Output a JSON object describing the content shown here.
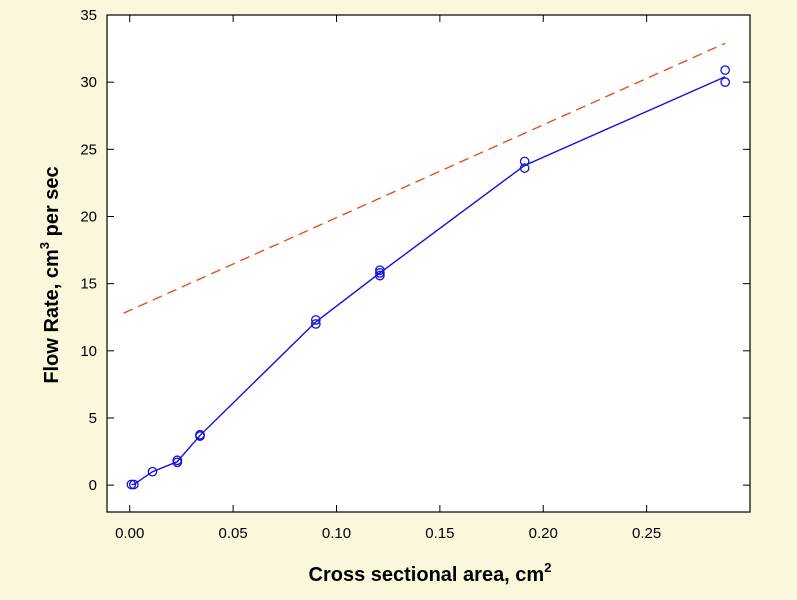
{
  "chart_data": {
    "type": "line",
    "title": "",
    "xlabel": "Cross sectional area, cm",
    "xlabel_sup": "2",
    "ylabel_main": "Flow Rate, cm",
    "ylabel_sup": "3",
    "ylabel_tail": " per sec",
    "xlim": [
      -0.011,
      0.3
    ],
    "ylim": [
      -2,
      35
    ],
    "xticks": [
      0.0,
      0.05,
      0.1,
      0.15,
      0.2,
      0.25
    ],
    "xtick_labels": [
      "0.00",
      "0.05",
      "0.10",
      "0.15",
      "0.20",
      "0.25"
    ],
    "yticks": [
      0,
      5,
      10,
      15,
      20,
      25,
      30,
      35
    ],
    "ytick_labels": [
      "0",
      "5",
      "10",
      "15",
      "20",
      "25",
      "30",
      "35"
    ],
    "grid": false,
    "background_color": "#FBF7DC",
    "series": [
      {
        "style": "points",
        "color": "#1010E0",
        "marker": "open-circle",
        "x": [
          0.0008,
          0.002,
          0.011,
          0.023,
          0.023,
          0.034,
          0.034,
          0.09,
          0.09,
          0.121,
          0.121,
          0.121,
          0.191,
          0.191,
          0.288,
          0.288
        ],
        "y": [
          0.05,
          0.05,
          1.0,
          1.7,
          1.85,
          3.65,
          3.75,
          12.0,
          12.3,
          15.6,
          15.8,
          16.0,
          23.6,
          24.1,
          30.0,
          30.9
        ]
      },
      {
        "style": "solid-line",
        "color": "#1010E0",
        "x": [
          0.0008,
          0.002,
          0.011,
          0.023,
          0.034,
          0.09,
          0.121,
          0.191,
          0.288
        ],
        "y": [
          0.05,
          0.05,
          1.0,
          1.75,
          3.7,
          12.15,
          15.8,
          23.8,
          30.4
        ]
      },
      {
        "style": "dashed-line",
        "color": "#E8501E",
        "x": [
          -0.003,
          0.288
        ],
        "y": [
          12.8,
          32.9
        ]
      }
    ]
  }
}
